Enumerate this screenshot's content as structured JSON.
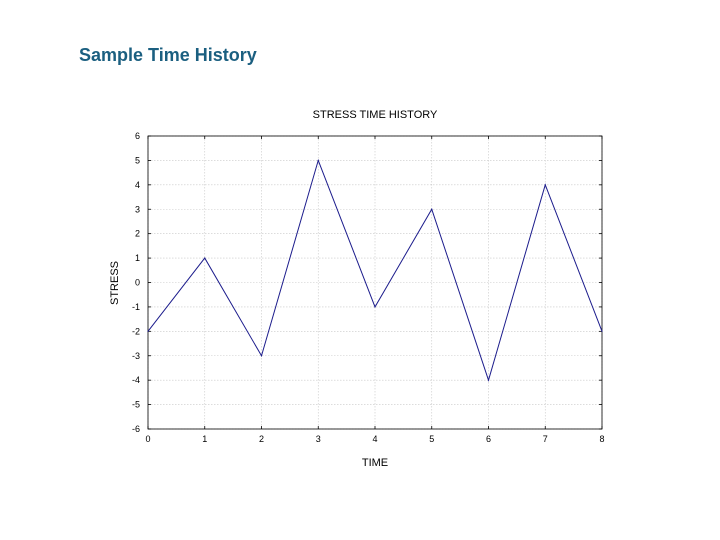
{
  "slide": {
    "title": "Sample Time History"
  },
  "colors": {
    "title": "#1b5f80",
    "line": "#1c1c8c",
    "grid": "#c8c8c8",
    "frame": "#000000"
  },
  "chart_data": {
    "type": "line",
    "title": "STRESS TIME HISTORY",
    "xlabel": "TIME",
    "ylabel": "STRESS",
    "xlim": [
      0,
      8
    ],
    "ylim": [
      -6,
      6
    ],
    "xticks": [
      0,
      1,
      2,
      3,
      4,
      5,
      6,
      7,
      8
    ],
    "yticks": [
      6,
      5,
      4,
      3,
      2,
      1,
      0,
      -1,
      -2,
      -3,
      -4,
      -5,
      -6
    ],
    "ytick_labels": [
      "6",
      "5",
      "4",
      "3",
      "2",
      "1",
      "0",
      "-1",
      "-2",
      "-3",
      "-4",
      "-5",
      "-6"
    ],
    "grid": true,
    "series": [
      {
        "x": [
          0,
          1,
          2,
          3,
          4,
          5,
          6,
          7,
          8
        ],
        "y": [
          -2,
          1,
          -3,
          5,
          -1,
          3,
          -4,
          4,
          -2
        ]
      }
    ]
  }
}
